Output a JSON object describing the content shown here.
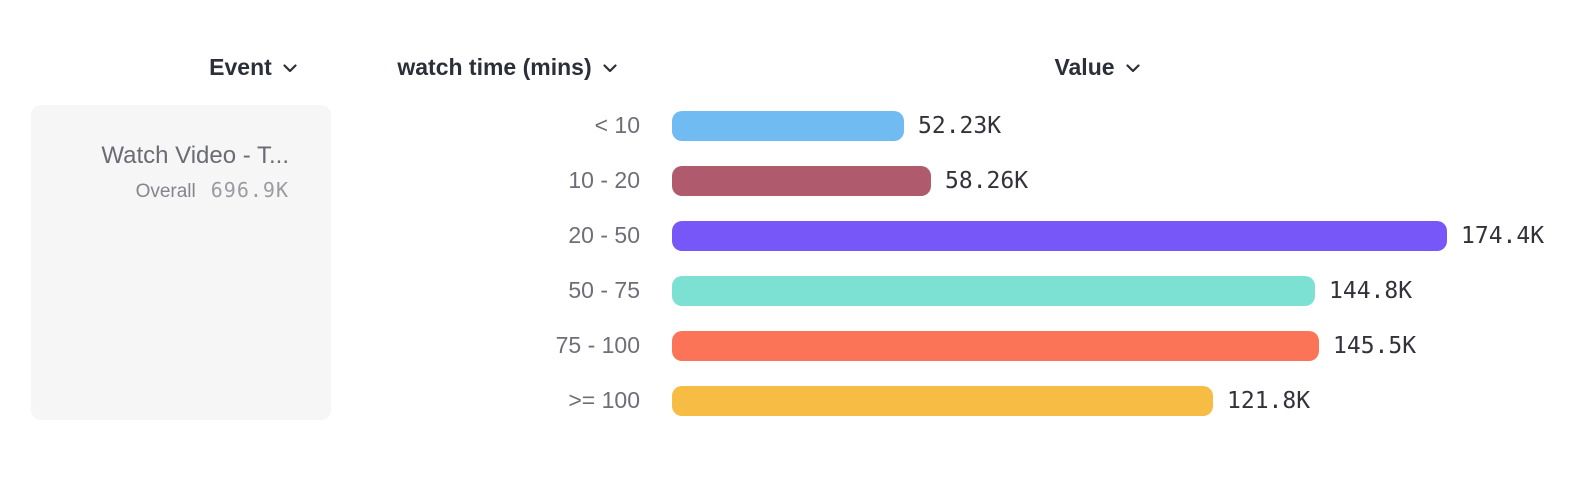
{
  "header": {
    "columns": [
      {
        "id": "event",
        "label": "Event"
      },
      {
        "id": "breakdown",
        "label": "watch time (mins)"
      },
      {
        "id": "value",
        "label": "Value"
      }
    ]
  },
  "event_card": {
    "title": "Watch Video - T...",
    "overall_label": "Overall",
    "overall_value": "696.9K"
  },
  "chart_data": {
    "type": "bar",
    "orientation": "horizontal",
    "title": "",
    "xlabel": "Value",
    "ylabel": "watch time (mins)",
    "categories": [
      "< 10",
      "10 - 20",
      "20 - 50",
      "50 - 75",
      "75 - 100",
      ">= 100"
    ],
    "values": [
      52230,
      58260,
      174400,
      144800,
      145500,
      121800
    ],
    "value_labels": [
      "52.23K",
      "58.26K",
      "174.4K",
      "144.8K",
      "145.5K",
      "121.8K"
    ],
    "bar_colors": [
      "#70bbf2",
      "#b05a6e",
      "#7757f7",
      "#7ce0d3",
      "#fc7458",
      "#f6bc43"
    ],
    "xlim": [
      0,
      174400
    ],
    "max_value": 174400,
    "grid": false,
    "legend_position": "none"
  },
  "colors": {
    "header_text": "#2b2f38",
    "category_text": "#6e6e78",
    "value_text": "#32323a",
    "card_bg": "#f6f6f7"
  }
}
